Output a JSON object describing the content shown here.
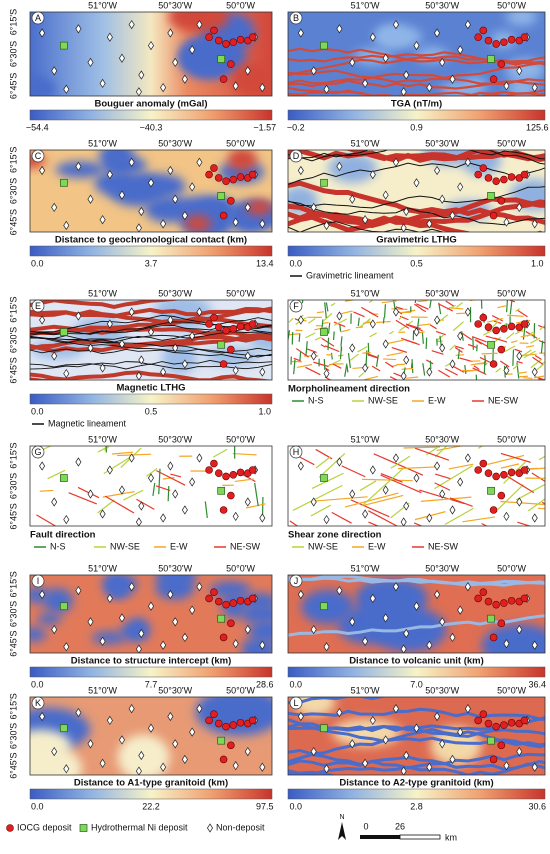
{
  "axes": {
    "longitude": [
      "51°0'W",
      "50°30'W",
      "50°0'W"
    ],
    "latitude": [
      "6°15'S",
      "6°30'S",
      "6°45'S"
    ]
  },
  "panels": [
    {
      "letter": "A",
      "title": "Bouguer anomaly (mGal)",
      "colorbar": [
        "−54.4",
        "−40.3",
        "−1.57"
      ]
    },
    {
      "letter": "B",
      "title": "TGA (nT/m)",
      "colorbar": [
        "−0.2",
        "0.9",
        "125.6"
      ]
    },
    {
      "letter": "C",
      "title": "Distance to geochronological contact (km)",
      "colorbar": [
        "0.0",
        "3.7",
        "13.4"
      ]
    },
    {
      "letter": "D",
      "title": "Gravimetric LTHG",
      "colorbar": [
        "0.0",
        "0.5",
        "1.0"
      ],
      "lineament": "Gravimetric lineament"
    },
    {
      "letter": "E",
      "title": "Magnetic LTHG",
      "colorbar": [
        "0.0",
        "0.5",
        "1.0"
      ],
      "lineament": "Magnetic lineament"
    },
    {
      "letter": "F",
      "title": "Morpholineament direction",
      "directions": [
        "N-S",
        "NW-SE",
        "E-W",
        "NE-SW"
      ]
    },
    {
      "letter": "G",
      "title": "Fault direction",
      "directions": [
        "N-S",
        "NW-SE",
        "E-W",
        "NE-SW"
      ]
    },
    {
      "letter": "H",
      "title": "Shear zone direction",
      "directions": [
        "NW-SE",
        "E-W",
        "NE-SW"
      ]
    },
    {
      "letter": "I",
      "title": "Distance to structure intercept (km)",
      "colorbar": [
        "0.0",
        "7.7",
        "28.6"
      ]
    },
    {
      "letter": "J",
      "title": "Distance to volcanic unit (km)",
      "colorbar": [
        "0.0",
        "7.0",
        "36.4"
      ]
    },
    {
      "letter": "K",
      "title": "Distance to A1-type granitoid (km)",
      "colorbar": [
        "0.0",
        "22.2",
        "97.5"
      ]
    },
    {
      "letter": "L",
      "title": "Distance to A2-type granitoid (km)",
      "colorbar": [
        "0.0",
        "2.8",
        "30.6"
      ]
    }
  ],
  "legend": {
    "items": [
      "IOCG deposit",
      "Hydrothermal Ni deposit",
      "Non-deposit"
    ],
    "north": "N",
    "scale": [
      "0",
      "26"
    ],
    "unit": "km"
  }
}
